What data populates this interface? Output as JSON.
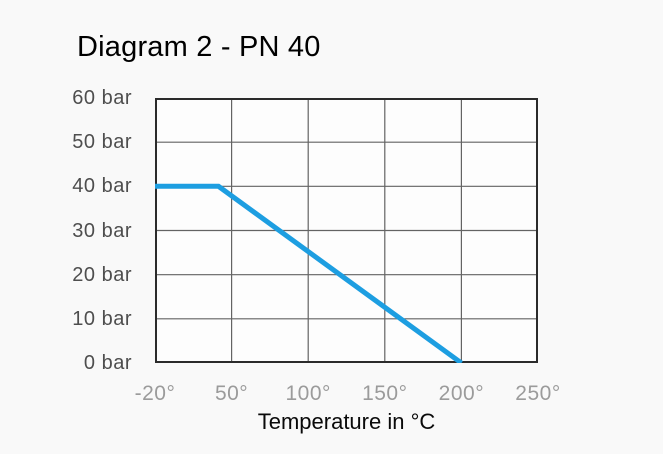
{
  "title": "Diagram 2 - PN 40",
  "colors": {
    "line": "#1d9ee1",
    "plot_border": "#2b2b2b",
    "grid": "#636363",
    "plot_background": "#fdfdfd",
    "y_tick_text": "#4e4e4e",
    "x_tick_text": "#9b9b9b",
    "title_text": "#000000"
  },
  "chart_data": {
    "type": "line",
    "title": "Diagram 2 - PN 40",
    "xlabel": "Temperature in °C",
    "ylabel": "bar",
    "grid": true,
    "legend": "none",
    "ylim": [
      0,
      60
    ],
    "x_ticks": {
      "values": [
        -20,
        50,
        100,
        150,
        200,
        250
      ],
      "labels": [
        "-20°",
        "50°",
        "100°",
        "150°",
        "200°",
        "250°"
      ]
    },
    "y_ticks": {
      "values": [
        60,
        50,
        40,
        30,
        20,
        10,
        0
      ],
      "labels": [
        "60 bar",
        "50 bar",
        "40 bar",
        "30 bar",
        "20 bar",
        "10 bar",
        "0 bar"
      ]
    },
    "series": [
      {
        "points": [
          {
            "x": -20,
            "y": 40
          },
          {
            "x": 38,
            "y": 40
          },
          {
            "x": 200,
            "y": 0
          }
        ]
      }
    ]
  }
}
